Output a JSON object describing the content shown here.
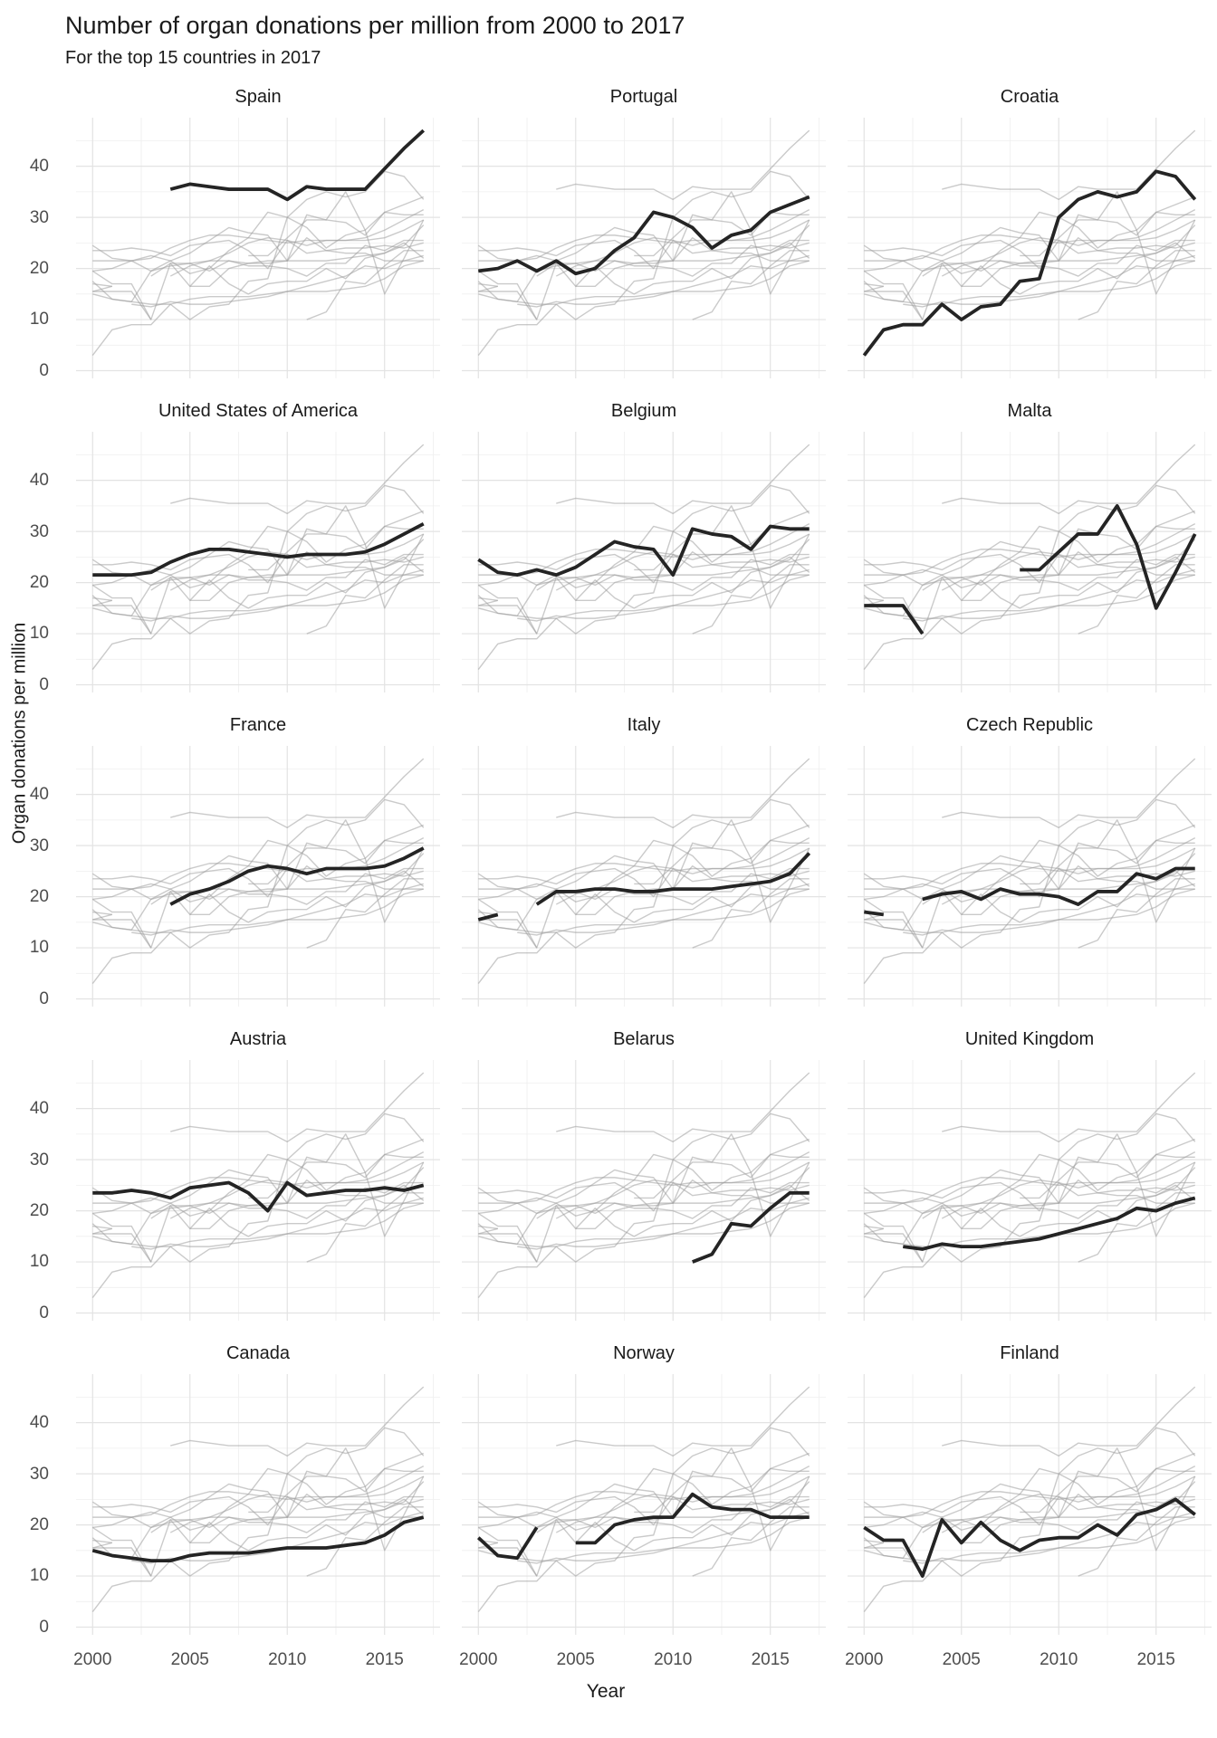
{
  "header": {
    "title": "Number of organ donations per million from 2000 to 2017",
    "subtitle": "For the top 15 countries in 2017"
  },
  "chart_data": {
    "type": "line",
    "faceted": true,
    "facet_layout": {
      "rows": 5,
      "cols": 3
    },
    "title": "Number of organ donations per million from 2000 to 2017",
    "subtitle": "For the top 15 countries in 2017",
    "xlabel": "Year",
    "ylabel": "Organ donations per million",
    "x": [
      2000,
      2001,
      2002,
      2003,
      2004,
      2005,
      2006,
      2007,
      2008,
      2009,
      2010,
      2011,
      2012,
      2013,
      2014,
      2015,
      2016,
      2017
    ],
    "x_ticks": [
      2000,
      2005,
      2010,
      2015
    ],
    "y_ticks": [
      0,
      10,
      20,
      30,
      40
    ],
    "x_minor_gridlines": [
      2002.5,
      2007.5,
      2012.5,
      2017.5
    ],
    "y_minor_gridlines": [
      5,
      15,
      25,
      35,
      45
    ],
    "xlim": [
      1999.15,
      2017.85
    ],
    "ylim": [
      -1.5,
      49.5
    ],
    "grid": true,
    "legend": "none",
    "highlight_color": "#242424",
    "background_series_color": "#9e9e9e",
    "gridline_major_color": "#e3e3e3",
    "gridline_minor_color": "#efefef",
    "facets": [
      "Spain",
      "Portugal",
      "Croatia",
      "United States of America",
      "Belgium",
      "Malta",
      "France",
      "Italy",
      "Czech Republic",
      "Austria",
      "Belarus",
      "United Kingdom",
      "Canada",
      "Norway",
      "Finland"
    ],
    "series": [
      {
        "name": "Spain",
        "values": [
          null,
          null,
          null,
          null,
          35.5,
          36.5,
          36,
          35.5,
          35.5,
          35.5,
          33.5,
          36,
          35.5,
          35.5,
          35.5,
          39.5,
          43.5,
          47
        ]
      },
      {
        "name": "Portugal",
        "values": [
          19.5,
          20,
          21.5,
          19.5,
          21.5,
          19,
          20,
          23.5,
          26,
          31,
          30,
          28,
          24,
          26.5,
          27.5,
          31,
          32.5,
          34
        ]
      },
      {
        "name": "Croatia",
        "values": [
          3,
          8,
          9,
          9,
          13,
          10,
          12.5,
          13,
          17.5,
          18,
          30,
          33.5,
          35,
          34,
          35,
          39,
          38,
          33.5
        ]
      },
      {
        "name": "United States of America",
        "values": [
          21.5,
          21.5,
          21.5,
          22,
          24,
          25.5,
          26.5,
          26.5,
          26,
          25.5,
          25,
          25.5,
          25.5,
          25.5,
          26,
          27.5,
          29.5,
          31.5
        ]
      },
      {
        "name": "Belgium",
        "values": [
          24.5,
          22,
          21.5,
          22.5,
          21.5,
          23,
          25.5,
          28,
          27,
          26.5,
          21.5,
          30.5,
          29.5,
          29,
          26.5,
          31,
          30.5,
          30.5
        ]
      },
      {
        "name": "Malta",
        "values": [
          15.5,
          15.5,
          15.5,
          10,
          null,
          null,
          null,
          null,
          22.5,
          22.5,
          26,
          29.5,
          29.5,
          35,
          27.5,
          15,
          22,
          29.5
        ]
      },
      {
        "name": "France",
        "values": [
          null,
          null,
          null,
          null,
          18.5,
          20.5,
          21.5,
          23,
          25,
          26,
          25.5,
          24.5,
          25.5,
          25.5,
          25.5,
          26,
          27.5,
          29.5
        ]
      },
      {
        "name": "Italy",
        "values": [
          15.5,
          16.5,
          null,
          18.5,
          21,
          21,
          21.5,
          21.5,
          21,
          21,
          21.5,
          21.5,
          21.5,
          22,
          22.5,
          23,
          24.5,
          28.5
        ]
      },
      {
        "name": "Czech Republic",
        "values": [
          17,
          16.5,
          null,
          19.5,
          20.5,
          21,
          19.5,
          21.5,
          20.5,
          20.5,
          20,
          18.5,
          21,
          21,
          24.5,
          23.5,
          25.5,
          25.5
        ]
      },
      {
        "name": "Austria",
        "values": [
          23.5,
          23.5,
          24,
          23.5,
          22.5,
          24.5,
          25,
          25.5,
          23.5,
          20,
          25.5,
          23,
          23.5,
          24,
          24,
          24.5,
          24,
          25
        ]
      },
      {
        "name": "Belarus",
        "values": [
          null,
          null,
          null,
          null,
          null,
          null,
          null,
          null,
          null,
          null,
          null,
          10,
          11.5,
          17.5,
          17,
          20.5,
          23.5,
          23.5
        ]
      },
      {
        "name": "United Kingdom",
        "values": [
          null,
          null,
          13,
          12.5,
          13.5,
          13,
          13,
          13.5,
          14,
          14.5,
          15.5,
          16.5,
          17.5,
          18.5,
          20.5,
          20,
          21.5,
          22.5
        ]
      },
      {
        "name": "Canada",
        "values": [
          15,
          14,
          13.5,
          13,
          13,
          14,
          14.5,
          14.5,
          14.5,
          15,
          15.5,
          15.5,
          15.5,
          16,
          16.5,
          18,
          20.5,
          21.5
        ]
      },
      {
        "name": "Norway",
        "values": [
          17.5,
          14,
          13.5,
          19.5,
          null,
          16.5,
          16.5,
          20,
          21,
          21.5,
          21.5,
          26,
          23.5,
          23,
          23,
          21.5,
          21.5,
          21.5
        ]
      },
      {
        "name": "Finland",
        "values": [
          19.5,
          17,
          17,
          10,
          21,
          16.5,
          20.5,
          17,
          15,
          17,
          17.5,
          17.5,
          20,
          18,
          22,
          23,
          25,
          22
        ]
      }
    ]
  }
}
